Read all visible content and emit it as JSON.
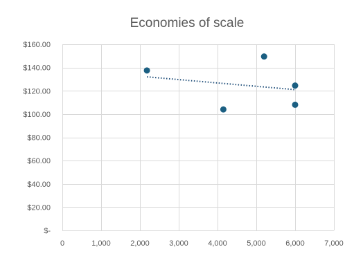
{
  "chart_data": {
    "type": "scatter",
    "title": "Economies of scale",
    "xlabel": "",
    "ylabel": "",
    "xlim": [
      0,
      7000
    ],
    "ylim": [
      0,
      160
    ],
    "x_ticks": [
      0,
      1000,
      2000,
      3000,
      4000,
      5000,
      6000,
      7000
    ],
    "x_tick_labels": [
      "0",
      "1,000",
      "2,000",
      "3,000",
      "4,000",
      "5,000",
      "6,000",
      "7,000"
    ],
    "y_ticks": [
      0,
      20,
      40,
      60,
      80,
      100,
      120,
      140,
      160
    ],
    "y_tick_labels": [
      "$-",
      "$20.00",
      "$40.00",
      "$60.00",
      "$80.00",
      "$100.00",
      "$120.00",
      "$140.00",
      "$160.00"
    ],
    "grid": true,
    "legend": "none",
    "series": [
      {
        "points": [
          {
            "x": 2180,
            "y": 137.5
          },
          {
            "x": 4150,
            "y": 104
          },
          {
            "x": 5200,
            "y": 149.5
          },
          {
            "x": 6000,
            "y": 124.5
          },
          {
            "x": 6000,
            "y": 108
          }
        ],
        "color": "#1b5f82"
      }
    ],
    "trendline": {
      "type": "linear",
      "x": [
        2180,
        6000
      ],
      "y": [
        132,
        121
      ],
      "style": "dotted",
      "color": "#1f4e79"
    }
  }
}
